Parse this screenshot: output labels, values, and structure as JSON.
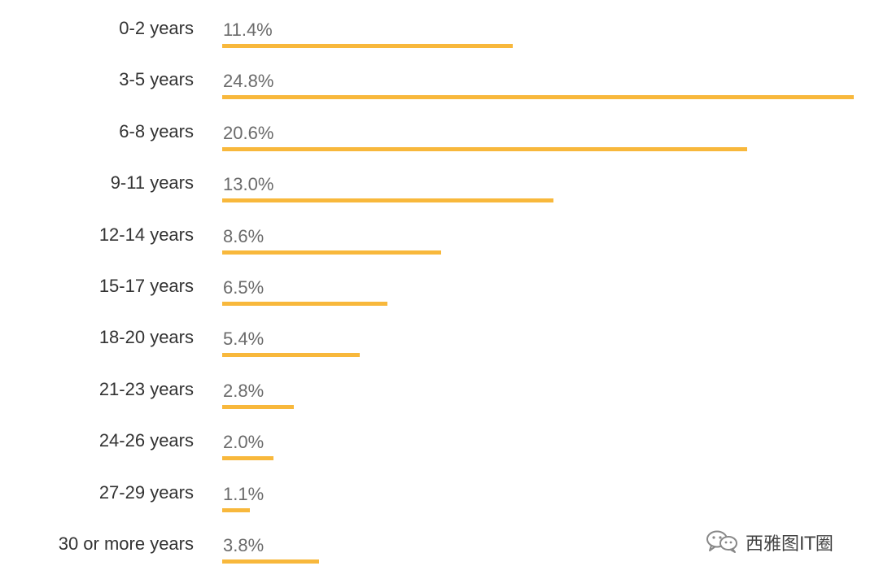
{
  "chart_data": {
    "type": "bar",
    "orientation": "horizontal",
    "categories": [
      "0-2 years",
      "3-5 years",
      "6-8 years",
      "9-11 years",
      "12-14 years",
      "15-17 years",
      "18-20 years",
      "21-23 years",
      "24-26 years",
      "27-29 years",
      "30 or more years"
    ],
    "values": [
      11.4,
      24.8,
      20.6,
      13.0,
      8.6,
      6.5,
      5.4,
      2.8,
      2.0,
      1.1,
      3.8
    ],
    "value_labels": [
      "11.4%",
      "24.8%",
      "20.6%",
      "13.0%",
      "8.6%",
      "6.5%",
      "5.4%",
      "2.8%",
      "2.0%",
      "1.1%",
      "3.8%"
    ],
    "value_unit": "%",
    "xlim": [
      0,
      24.8
    ],
    "grid": false,
    "legend": "none",
    "bar_color": "#f8b83c",
    "title": "",
    "xlabel": "",
    "ylabel": ""
  },
  "watermark": {
    "text": "西雅图IT圈",
    "icon": "wechat-icon"
  }
}
